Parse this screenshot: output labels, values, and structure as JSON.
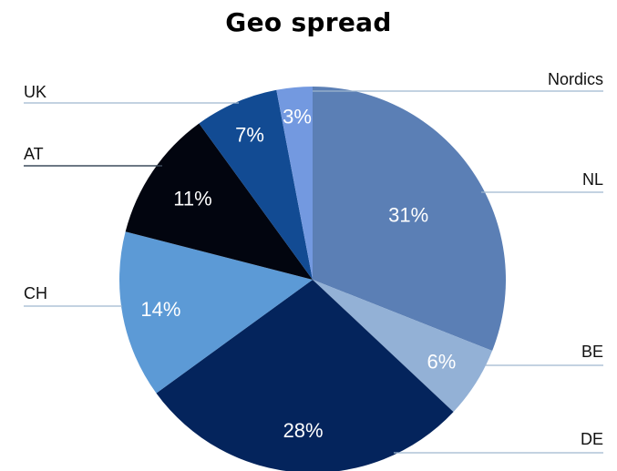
{
  "chart_data": {
    "type": "pie",
    "title": "Geo spread",
    "slices": [
      {
        "label": "NL",
        "value": 31,
        "text": "31%",
        "color": "#5b7fb5"
      },
      {
        "label": "BE",
        "value": 6,
        "text": "6%",
        "color": "#93b1d6"
      },
      {
        "label": "DE",
        "value": 28,
        "text": "28%",
        "color": "#04245c"
      },
      {
        "label": "CH",
        "value": 14,
        "text": "14%",
        "color": "#5c9ad6"
      },
      {
        "label": "AT",
        "value": 11,
        "text": "11%",
        "color": "#02050f"
      },
      {
        "label": "UK",
        "value": 7,
        "text": "7%",
        "color": "#124b93"
      },
      {
        "label": "Nordics",
        "value": 3,
        "text": "3%",
        "color": "#7399e0"
      }
    ],
    "start": "12 o'clock",
    "direction": "clockwise",
    "labels": "outside, with leader lines",
    "legend": "none"
  }
}
